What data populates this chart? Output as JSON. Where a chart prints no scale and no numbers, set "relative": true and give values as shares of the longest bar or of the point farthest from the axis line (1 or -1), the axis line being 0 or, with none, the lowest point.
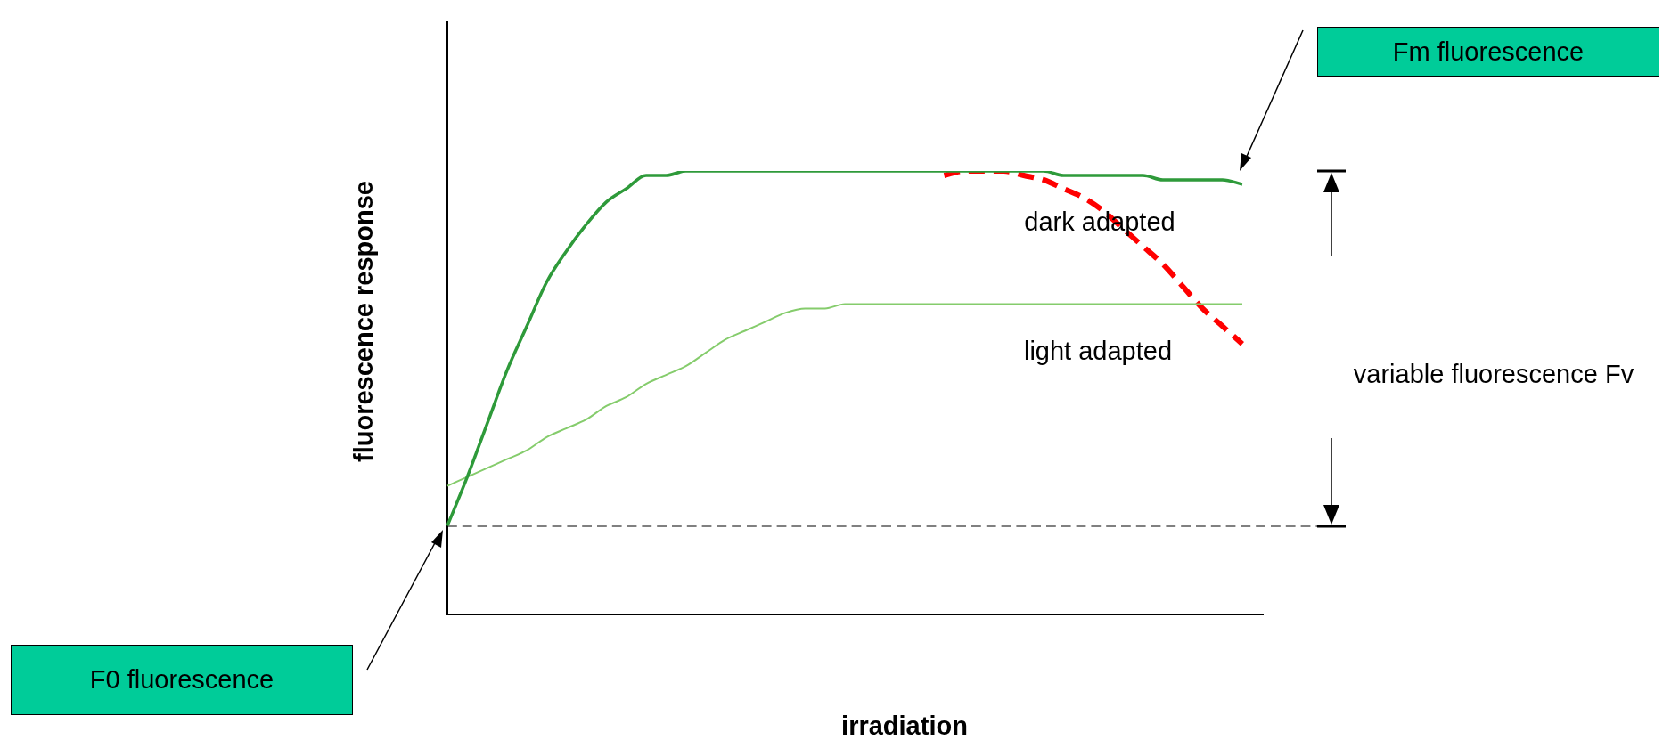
{
  "chart_data": {
    "type": "line",
    "relative": true,
    "xlabel": "irradiation",
    "ylabel": "fluorescence response",
    "categories": [
      null,
      null,
      null,
      null,
      null,
      null,
      null,
      null,
      null,
      null,
      null,
      null,
      null,
      null,
      null,
      null,
      null,
      null,
      null,
      null,
      null,
      null,
      null,
      null,
      null,
      null,
      null,
      null,
      null,
      null,
      null,
      null,
      null,
      null,
      null,
      null,
      null,
      null,
      null,
      null,
      null
    ],
    "series": [
      {
        "name": "dark adapted",
        "color": "#2e9a3a",
        "values": [
          0.2,
          0.31,
          0.43,
          0.55,
          0.65,
          0.75,
          0.82,
          0.88,
          0.93,
          0.96,
          0.99,
          0.99,
          1,
          1,
          1,
          1,
          1,
          1,
          1,
          1,
          1,
          1,
          1,
          1,
          1,
          1,
          1,
          1,
          1,
          1,
          1,
          0.99,
          0.99,
          0.99,
          0.99,
          0.99,
          0.98,
          0.98,
          0.98,
          0.98,
          0.97
        ]
      },
      {
        "name": "light adapted",
        "color": "#85cc6c",
        "values": [
          0.29,
          0.31,
          0.33,
          0.35,
          0.37,
          0.4,
          0.42,
          0.44,
          0.47,
          0.49,
          0.52,
          0.54,
          0.56,
          0.59,
          0.62,
          0.64,
          0.66,
          0.68,
          0.69,
          0.69,
          0.7,
          0.7,
          0.7,
          0.7,
          0.7,
          0.7,
          0.7,
          0.7,
          0.7,
          0.7,
          0.7,
          0.7,
          0.7,
          0.7,
          0.7,
          0.7,
          0.7,
          0.7,
          0.7,
          0.7,
          0.7
        ]
      },
      {
        "color": "#ff0000",
        "line_style": "dashed",
        "values": [
          null,
          null,
          null,
          null,
          null,
          null,
          null,
          null,
          null,
          null,
          null,
          null,
          null,
          null,
          null,
          null,
          null,
          null,
          null,
          null,
          null,
          null,
          null,
          null,
          null,
          0.99,
          1,
          1,
          1,
          0.99,
          0.98,
          0.96,
          0.94,
          0.91,
          0.87,
          0.83,
          0.79,
          0.74,
          0.69,
          0.65,
          0.61
        ]
      }
    ],
    "ref_lines": [
      {
        "axis": "y",
        "value": 0.2,
        "color": "#808080",
        "line_style": "dashed"
      }
    ],
    "annotations": [
      "Fm fluorescence",
      "F0 fluorescence",
      "variable fluorescence Fv"
    ],
    "marker": "none",
    "line_style": "solid",
    "legend": false
  }
}
